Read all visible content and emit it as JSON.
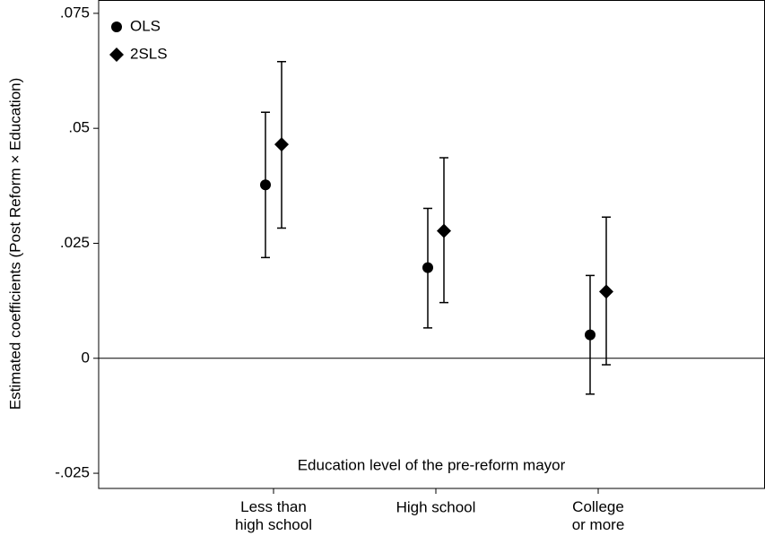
{
  "chart_data": {
    "type": "errorbar",
    "y_label": "Estimated coefficients (Post Reform × Education)",
    "annotation": "Education level of the pre-reform mayor",
    "categories": [
      "Less than\nhigh school",
      "High school",
      "College\nor more"
    ],
    "series": [
      {
        "name": "OLS",
        "marker": "circle",
        "color": "#000000",
        "values": [
          0.0377,
          0.0197,
          0.0051
        ],
        "lower": [
          0.0219,
          0.0066,
          -0.0078
        ],
        "upper": [
          0.0535,
          0.0326,
          0.018
        ]
      },
      {
        "name": "2SLS",
        "marker": "diamond",
        "color": "#000000",
        "values": [
          0.0465,
          0.0277,
          0.0145
        ],
        "lower": [
          0.0283,
          0.0121,
          -0.0014
        ],
        "upper": [
          0.0645,
          0.0436,
          0.0307
        ]
      }
    ],
    "ylim": [
      -0.0283,
      0.0779
    ],
    "yticks": [
      {
        "value": -0.025,
        "label": "-.025"
      },
      0,
      {
        "value": 0.025,
        "label": ".025"
      },
      {
        "value": 0.05,
        "label": ".05"
      },
      {
        "value": 0.075,
        "label": ".075"
      }
    ],
    "reference_line": 0,
    "legend": "top-left"
  }
}
